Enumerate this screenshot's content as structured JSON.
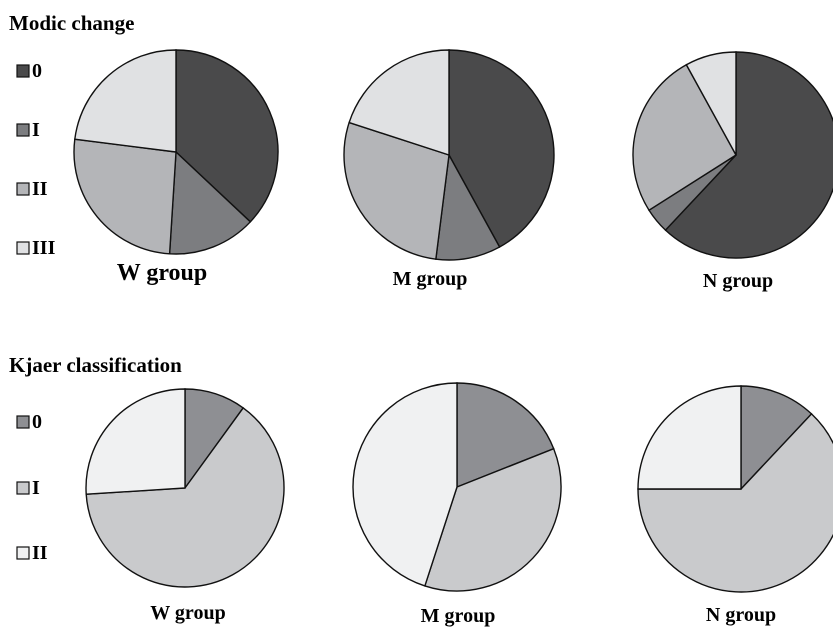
{
  "chart_data": [
    {
      "type": "pie",
      "title": "Modic change",
      "legend": {
        "placement": "left",
        "items": [
          {
            "label": "0",
            "color": "#4a4a4b"
          },
          {
            "label": "I",
            "color": "#7c7d80"
          },
          {
            "label": "II",
            "color": "#b4b5b8"
          },
          {
            "label": "III",
            "color": "#e0e1e3"
          }
        ]
      },
      "pies": [
        {
          "label": "W group",
          "values": [
            0.37,
            0.14,
            0.26,
            0.23
          ]
        },
        {
          "label": "M group",
          "values": [
            0.42,
            0.1,
            0.28,
            0.2
          ]
        },
        {
          "label": "N group",
          "values": [
            0.62,
            0.04,
            0.26,
            0.08
          ]
        }
      ]
    },
    {
      "type": "pie",
      "title": "Kjaer classification",
      "legend": {
        "placement": "left",
        "items": [
          {
            "label": "0",
            "color": "#8e8f93"
          },
          {
            "label": "I",
            "color": "#c9cacc"
          },
          {
            "label": "II",
            "color": "#f0f1f2"
          }
        ]
      },
      "pies": [
        {
          "label": "W group",
          "values": [
            0.1,
            0.64,
            0.26
          ]
        },
        {
          "label": "M group",
          "values": [
            0.19,
            0.36,
            0.45
          ]
        },
        {
          "label": "N group",
          "values": [
            0.12,
            0.63,
            0.25
          ]
        }
      ]
    }
  ]
}
